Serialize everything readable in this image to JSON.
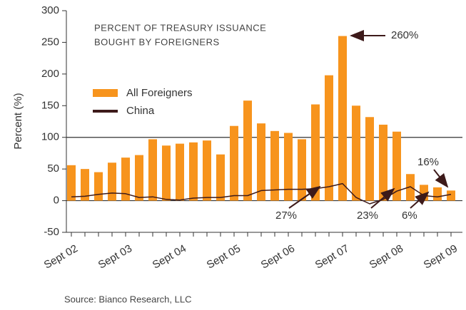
{
  "chart_data": {
    "type": "bar",
    "title": "PERCENT OF TREASURY ISSUANCE",
    "subtitle": "BOUGHT BY FOREIGNERS",
    "y_label": "Percent (%)",
    "source": "Source: Bianco Research, LLC",
    "categories": [
      "Sept 02",
      null,
      null,
      null,
      "Sept 03",
      null,
      null,
      null,
      "Sept 04",
      null,
      null,
      null,
      "Sept 05",
      null,
      null,
      null,
      "Sept 06",
      null,
      null,
      null,
      "Sept 07",
      null,
      null,
      null,
      "Sept 08",
      null,
      null,
      null,
      "Sept 09"
    ],
    "series": [
      {
        "name": "All Foreigners",
        "color": "#f7941d",
        "type": "bar",
        "values": [
          56,
          50,
          45,
          60,
          68,
          72,
          97,
          87,
          90,
          92,
          95,
          73,
          118,
          158,
          122,
          110,
          107,
          97,
          152,
          198,
          260,
          150,
          132,
          120,
          109,
          42,
          25,
          21,
          16
        ]
      },
      {
        "name": "China",
        "color": "#3d1a1a",
        "type": "line",
        "values": [
          6,
          7,
          10,
          12,
          11,
          5,
          6,
          2,
          1,
          4,
          5,
          5,
          8,
          8,
          16,
          17,
          18,
          18,
          19,
          22,
          27,
          5,
          -5,
          2,
          15,
          22,
          8,
          6,
          10
        ]
      }
    ],
    "annotations": [
      "260%",
      "27%",
      "23%",
      "6%",
      "16%"
    ],
    "ylim": [
      -50,
      300
    ],
    "yticks": [
      -50,
      0,
      50,
      100,
      150,
      200,
      250,
      300
    ],
    "reference_lines": [
      0,
      100
    ]
  }
}
